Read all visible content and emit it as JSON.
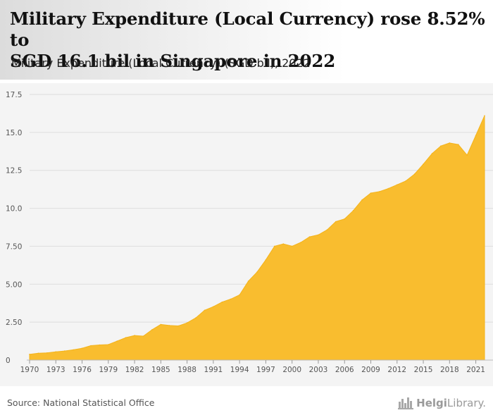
{
  "header": {
    "title_line1": "Military Expenditure (Local Currency) rose 8.52% to",
    "title_line2": "SGD 16.1 bil in Singapore in 2022",
    "subtitle": "Military Expenditure (Local Currency) (SGD bil), 2022"
  },
  "footer": {
    "source": "Source: National Statistical Office",
    "logo_brand": "Helgi",
    "logo_rest": "Library."
  },
  "colors": {
    "fill": "#f9bd2f",
    "stroke": "#f4b31a",
    "grid": "#dddddd",
    "axis_text": "#555555"
  },
  "chart_data": {
    "type": "area",
    "title": "Military Expenditure (Local Currency) rose 8.52% to SGD 16.1 bil in Singapore in 2022",
    "subtitle": "Military Expenditure (Local Currency) (SGD bil), 2022",
    "xlabel": "",
    "ylabel": "",
    "xlim": [
      1970,
      2022
    ],
    "ylim": [
      0,
      17.5
    ],
    "yticks": [
      "0",
      "2.50",
      "5.00",
      "7.50",
      "10.0",
      "12.5",
      "15.0",
      "17.5"
    ],
    "yticks_values": [
      0,
      2.5,
      5,
      7.5,
      10,
      12.5,
      15,
      17.5
    ],
    "xticks": [
      "1970",
      "1973",
      "1976",
      "1979",
      "1982",
      "1985",
      "1988",
      "1991",
      "1994",
      "1997",
      "2000",
      "2003",
      "2006",
      "2009",
      "2012",
      "2015",
      "2018",
      "2021"
    ],
    "grid": true,
    "legend": "none",
    "x": [
      1970,
      1971,
      1972,
      1973,
      1974,
      1975,
      1976,
      1977,
      1978,
      1979,
      1980,
      1981,
      1982,
      1983,
      1984,
      1985,
      1986,
      1987,
      1988,
      1989,
      1990,
      1991,
      1992,
      1993,
      1994,
      1995,
      1996,
      1997,
      1998,
      1999,
      2000,
      2001,
      2002,
      2003,
      2004,
      2005,
      2006,
      2007,
      2008,
      2009,
      2010,
      2011,
      2012,
      2013,
      2014,
      2015,
      2016,
      2017,
      2018,
      2019,
      2020,
      2021,
      2022
    ],
    "values": [
      0.38,
      0.45,
      0.48,
      0.55,
      0.6,
      0.68,
      0.78,
      0.95,
      1.0,
      1.02,
      1.25,
      1.48,
      1.62,
      1.58,
      2.0,
      2.35,
      2.28,
      2.25,
      2.45,
      2.78,
      3.28,
      3.52,
      3.82,
      4.02,
      4.3,
      5.2,
      5.8,
      6.6,
      7.5,
      7.65,
      7.5,
      7.75,
      8.12,
      8.25,
      8.58,
      9.12,
      9.3,
      9.85,
      10.55,
      11.0,
      11.1,
      11.3,
      11.55,
      11.8,
      12.25,
      12.9,
      13.6,
      14.1,
      14.3,
      14.2,
      13.5,
      14.8,
      16.1
    ]
  }
}
